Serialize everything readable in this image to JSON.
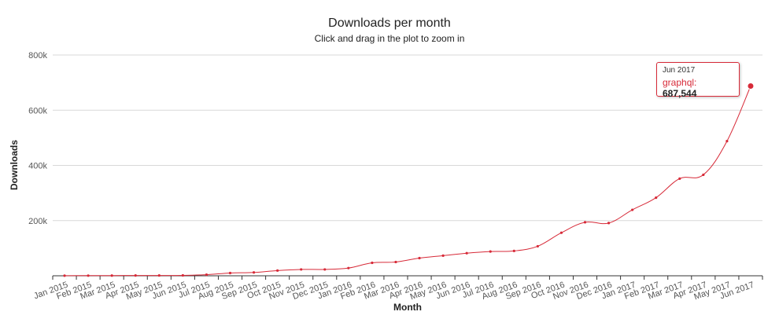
{
  "chart_data": {
    "type": "line",
    "title": "Downloads per month",
    "subtitle": "Click and drag in the plot to zoom in",
    "xlabel": "Month",
    "ylabel": "Downloads",
    "ylim": [
      0,
      800000
    ],
    "yticks": [
      "800k",
      "600k",
      "400k",
      "200k"
    ],
    "grid": true,
    "legend": "none",
    "categories": [
      "Jan 2015",
      "Feb 2015",
      "Mar 2015",
      "Apr 2015",
      "May 2015",
      "Jun 2015",
      "Jul 2015",
      "Aug 2015",
      "Sep 2015",
      "Oct 2015",
      "Nov 2015",
      "Dec 2015",
      "Jan 2016",
      "Feb 2016",
      "Mar 2016",
      "Apr 2016",
      "May 2016",
      "Jun 2016",
      "Jul 2016",
      "Aug 2016",
      "Sep 2016",
      "Oct 2016",
      "Nov 2016",
      "Dec 2016",
      "Jan 2017",
      "Feb 2017",
      "Mar 2017",
      "Apr 2017",
      "May 2017",
      "Jun 2017"
    ],
    "series": [
      {
        "name": "graphql",
        "color": "#d72a38",
        "values": [
          500,
          600,
          800,
          1000,
          1200,
          1500,
          4000,
          10000,
          12000,
          19000,
          23000,
          23000,
          28000,
          47000,
          50000,
          64000,
          73000,
          82000,
          88000,
          90000,
          107000,
          156000,
          194000,
          191000,
          239000,
          283000,
          352000,
          366000,
          488000,
          687544
        ]
      }
    ],
    "tooltip": {
      "date": "Jun 2017",
      "series": "graphql",
      "value": "687,544"
    }
  }
}
